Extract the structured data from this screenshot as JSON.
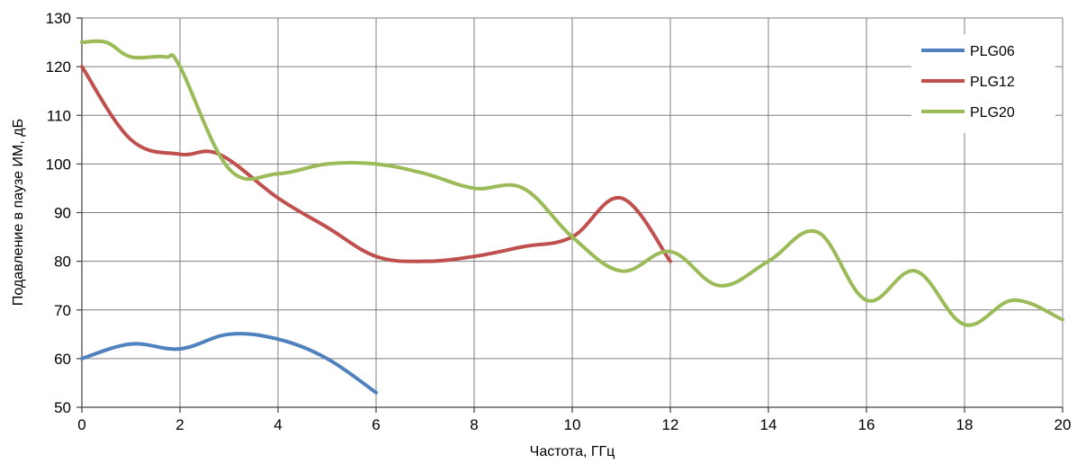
{
  "chart_data": {
    "type": "line",
    "xlabel": "Частота, ГГц",
    "ylabel": "Подавление в паузе ИМ, дБ",
    "xlim": [
      0,
      20
    ],
    "ylim": [
      50,
      130
    ],
    "x_ticks": [
      0,
      2,
      4,
      6,
      8,
      10,
      12,
      14,
      16,
      18,
      20
    ],
    "y_ticks": [
      50,
      60,
      70,
      80,
      90,
      100,
      110,
      120,
      130
    ],
    "grid": true,
    "legend_position": "top-right",
    "series": [
      {
        "name": "PLG06",
        "color": "#4f81bd",
        "x": [
          0,
          1,
          2,
          3,
          4,
          5,
          6
        ],
        "y": [
          60,
          63,
          62,
          65,
          64,
          60,
          53
        ]
      },
      {
        "name": "PLG12",
        "color": "#c0504d",
        "x": [
          0,
          1,
          2,
          2.8,
          4,
          5,
          6,
          7,
          8,
          9,
          10,
          11,
          12
        ],
        "y": [
          120,
          105,
          102,
          102,
          93,
          87,
          81,
          80,
          81,
          83,
          85,
          93,
          80
        ]
      },
      {
        "name": "PLG20",
        "color": "#9bbb59",
        "x": [
          0,
          0.5,
          1,
          1.7,
          2,
          3,
          4,
          5,
          6,
          7,
          8,
          9,
          10,
          11,
          12,
          13,
          14,
          15,
          16,
          17,
          18,
          19,
          20
        ],
        "y": [
          125,
          125,
          122,
          122,
          120,
          99,
          98,
          100,
          100,
          98,
          95,
          95,
          85,
          78,
          82,
          75,
          80,
          86,
          72,
          78,
          67,
          72,
          68
        ]
      }
    ]
  }
}
